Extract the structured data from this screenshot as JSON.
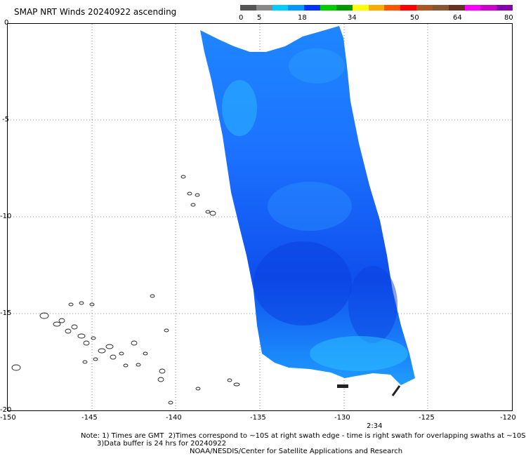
{
  "title": "SMAP NRT Winds 20240922 ascending",
  "colorbar": {
    "labels": [
      "0",
      "5",
      "18",
      "34",
      "50",
      "64",
      "80"
    ],
    "colors": [
      "#555555",
      "#888888",
      "#00ccff",
      "#0099ff",
      "#0033ff",
      "#00cc00",
      "#009900",
      "#ffff00",
      "#ffaa00",
      "#ff5500",
      "#ff0000",
      "#aa5522",
      "#885533",
      "#663322",
      "#ff00ff",
      "#cc00cc",
      "#8800aa"
    ]
  },
  "map": {
    "lat_labels": [
      "0",
      "-5",
      "-10",
      "-15",
      "-20"
    ],
    "lon_labels": [
      "-150",
      "-145",
      "-140",
      "-135",
      "-130",
      "-125",
      "-120"
    ],
    "time_label": "2:34",
    "swath_colors": [
      "#1e90ff",
      "#1565ff",
      "#0f4ae6",
      "#29b6ff"
    ]
  },
  "notes": {
    "line1": "Note: 1) Times are GMT  2)Times correspond to ~10S at right swath edge - time is right swath for overlapping swaths at ~10S",
    "line2": "3)Data buffer is 24 hrs for 20240922",
    "line3": "NOAA/NESDIS/Center for Satellite Applications and Research"
  }
}
